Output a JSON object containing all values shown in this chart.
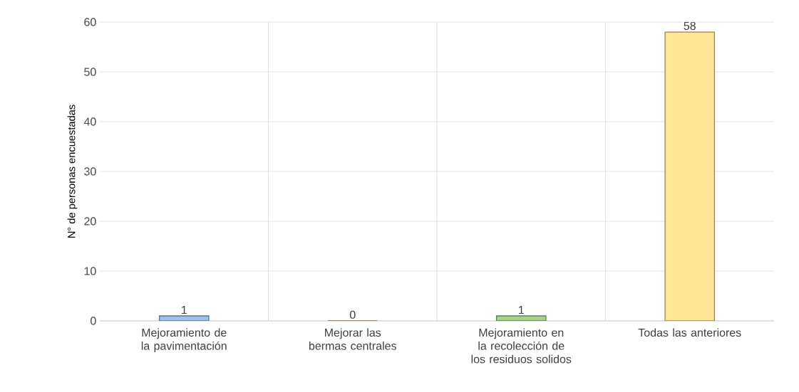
{
  "chart_data": {
    "type": "bar",
    "ylabel": "N° de personas encuestadas",
    "categories": [
      "Mejoramiento de la pavimentación",
      "Mejorar las bermas centrales",
      "Mejoramiento en la recolección de los residuos solidos",
      "Todas las anteriores"
    ],
    "values": [
      1,
      0,
      1,
      58
    ],
    "colors": [
      "#9dc3e6",
      "#f4b183",
      "#a9d18e",
      "#ffe699"
    ],
    "ylim": [
      0,
      60
    ],
    "yticks": [
      0,
      10,
      20,
      30,
      40,
      50,
      60
    ],
    "grid": true,
    "data_labels": true
  }
}
